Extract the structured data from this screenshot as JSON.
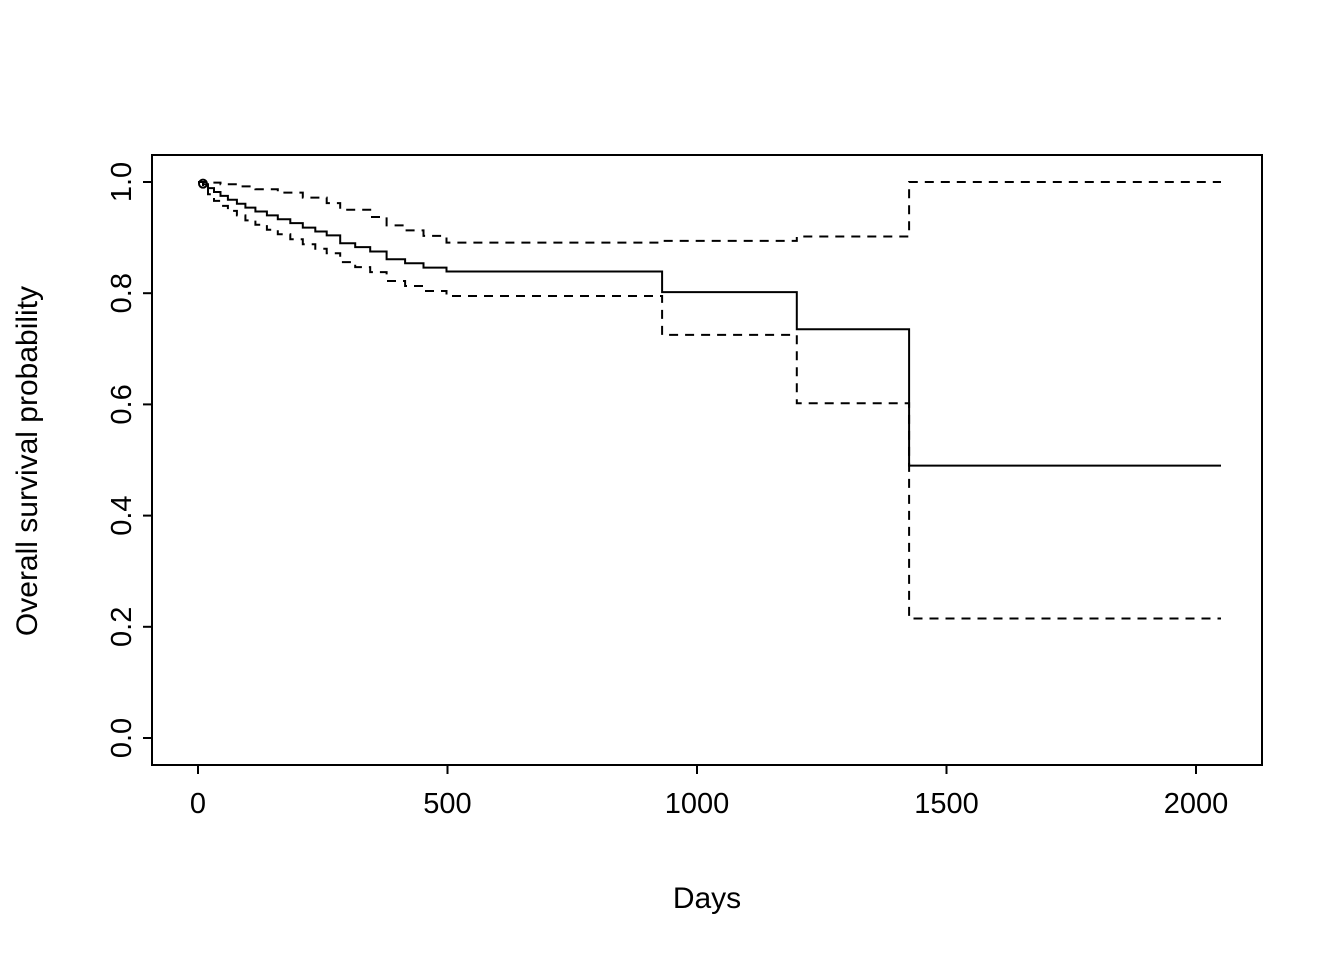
{
  "chart_data": {
    "type": "line",
    "subtype": "kaplan-meier-step",
    "title": "",
    "xlabel": "Days",
    "ylabel": "Overall survival probability",
    "xlim": [
      0,
      2050
    ],
    "ylim": [
      0.0,
      1.0
    ],
    "grid": false,
    "legend_position": "none",
    "x_ticks": [
      0,
      500,
      1000,
      1500,
      2000
    ],
    "x_tick_labels": [
      "0",
      "500",
      "1000",
      "1500",
      "2000"
    ],
    "y_ticks": [
      0.0,
      0.2,
      0.4,
      0.6,
      0.8,
      1.0
    ],
    "y_tick_labels": [
      "0.0",
      "0.2",
      "0.4",
      "0.6",
      "0.8",
      "1.0"
    ],
    "end_x": 2050,
    "line_color": "#000000",
    "series": [
      {
        "name": "survival-estimate",
        "style": "solid",
        "points": [
          [
            0,
            1.0
          ],
          [
            10,
            0.996
          ],
          [
            20,
            0.989
          ],
          [
            32,
            0.982
          ],
          [
            45,
            0.975
          ],
          [
            60,
            0.968
          ],
          [
            78,
            0.961
          ],
          [
            95,
            0.954
          ],
          [
            115,
            0.947
          ],
          [
            138,
            0.94
          ],
          [
            160,
            0.933
          ],
          [
            185,
            0.926
          ],
          [
            210,
            0.918
          ],
          [
            235,
            0.911
          ],
          [
            258,
            0.904
          ],
          [
            285,
            0.89
          ],
          [
            315,
            0.883
          ],
          [
            345,
            0.875
          ],
          [
            378,
            0.861
          ],
          [
            415,
            0.854
          ],
          [
            452,
            0.846
          ],
          [
            498,
            0.839
          ],
          [
            930,
            0.802
          ],
          [
            1200,
            0.735
          ],
          [
            1425,
            0.49
          ]
        ]
      },
      {
        "name": "upper-confidence-bound",
        "style": "dashed",
        "points": [
          [
            0,
            1.0
          ],
          [
            20,
            0.999
          ],
          [
            45,
            0.996
          ],
          [
            78,
            0.992
          ],
          [
            115,
            0.987
          ],
          [
            160,
            0.981
          ],
          [
            210,
            0.972
          ],
          [
            258,
            0.962
          ],
          [
            285,
            0.95
          ],
          [
            345,
            0.937
          ],
          [
            378,
            0.922
          ],
          [
            415,
            0.913
          ],
          [
            452,
            0.903
          ],
          [
            498,
            0.891
          ],
          [
            930,
            0.894
          ],
          [
            1200,
            0.902
          ],
          [
            1425,
            1.0
          ]
        ]
      },
      {
        "name": "lower-confidence-bound",
        "style": "dashed",
        "points": [
          [
            0,
            1.0
          ],
          [
            10,
            0.99
          ],
          [
            20,
            0.978
          ],
          [
            32,
            0.966
          ],
          [
            45,
            0.957
          ],
          [
            60,
            0.948
          ],
          [
            78,
            0.94
          ],
          [
            95,
            0.931
          ],
          [
            115,
            0.923
          ],
          [
            138,
            0.914
          ],
          [
            160,
            0.906
          ],
          [
            185,
            0.897
          ],
          [
            210,
            0.888
          ],
          [
            235,
            0.88
          ],
          [
            258,
            0.872
          ],
          [
            285,
            0.856
          ],
          [
            315,
            0.847
          ],
          [
            345,
            0.838
          ],
          [
            378,
            0.822
          ],
          [
            415,
            0.813
          ],
          [
            452,
            0.804
          ],
          [
            498,
            0.795
          ],
          [
            930,
            0.725
          ],
          [
            1200,
            0.602
          ],
          [
            1425,
            0.215
          ]
        ]
      }
    ],
    "start_marker": {
      "x": 10,
      "y": 0.997
    }
  }
}
